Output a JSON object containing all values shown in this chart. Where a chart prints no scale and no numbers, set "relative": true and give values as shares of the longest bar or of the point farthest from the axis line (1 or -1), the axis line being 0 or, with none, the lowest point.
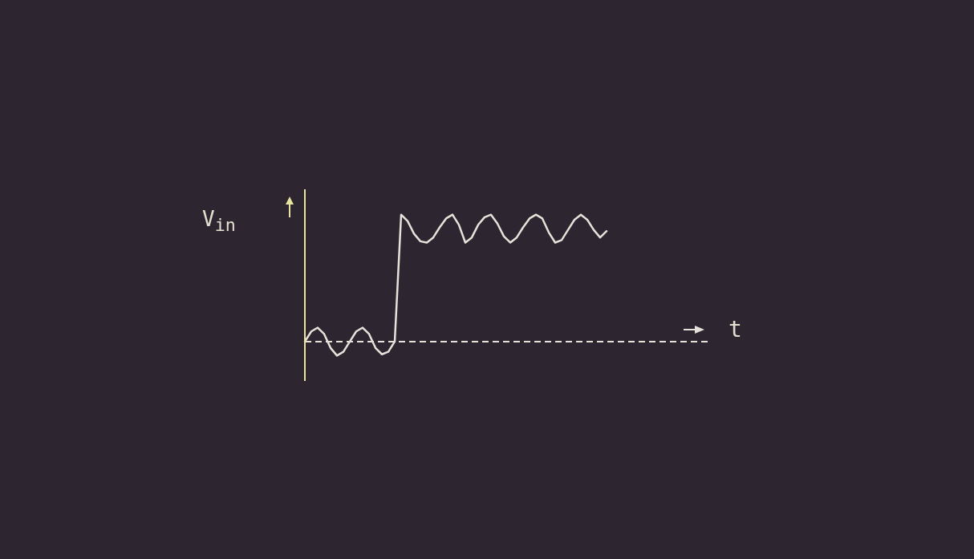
{
  "chart_data": {
    "type": "line",
    "relative": true,
    "xlabel": "t",
    "ylabel": "V$_{in}$",
    "categories": [
      null,
      null,
      null,
      null,
      null,
      null,
      null,
      null,
      null,
      null,
      null,
      null,
      null,
      null,
      null,
      null,
      null,
      null,
      null,
      null,
      null,
      null,
      null,
      null,
      null,
      null,
      null,
      null,
      null,
      null,
      null,
      null,
      null,
      null,
      null,
      null,
      null,
      null,
      null,
      null,
      null,
      null,
      null,
      null,
      null,
      null,
      null,
      null,
      null,
      null,
      null,
      null,
      null,
      null,
      null,
      null,
      null,
      null,
      null,
      null,
      null,
      null,
      null,
      null
    ],
    "series": [
      {
        "color": "#e6e2da",
        "values": [
          0,
          0.08,
          0.11,
          0.06,
          -0.05,
          -0.11,
          -0.08,
          0,
          0.08,
          0.11,
          0.06,
          -0.05,
          -0.1,
          -0.08,
          0,
          1,
          0.95,
          0.85,
          0.79,
          0.78,
          0.82,
          0.9,
          0.97,
          1,
          0.92,
          0.78,
          0.82,
          0.92,
          0.98,
          1,
          0.93,
          0.83,
          0.78,
          0.82,
          0.9,
          0.97,
          1,
          0.97,
          0.86,
          0.78,
          0.8,
          0.88,
          0.96,
          1,
          0.96,
          0.88,
          0.82,
          0.87,
          null,
          null,
          null,
          null,
          null,
          null,
          null,
          null,
          null,
          null,
          null,
          null,
          null,
          null,
          null,
          null
        ]
      }
    ],
    "ref_lines": [
      {
        "axis": "y",
        "value": 0,
        "color": "#e6e2da",
        "line_style": "dashed"
      }
    ],
    "grid": false,
    "legend": false,
    "marker": "none",
    "line_style": "solid"
  }
}
